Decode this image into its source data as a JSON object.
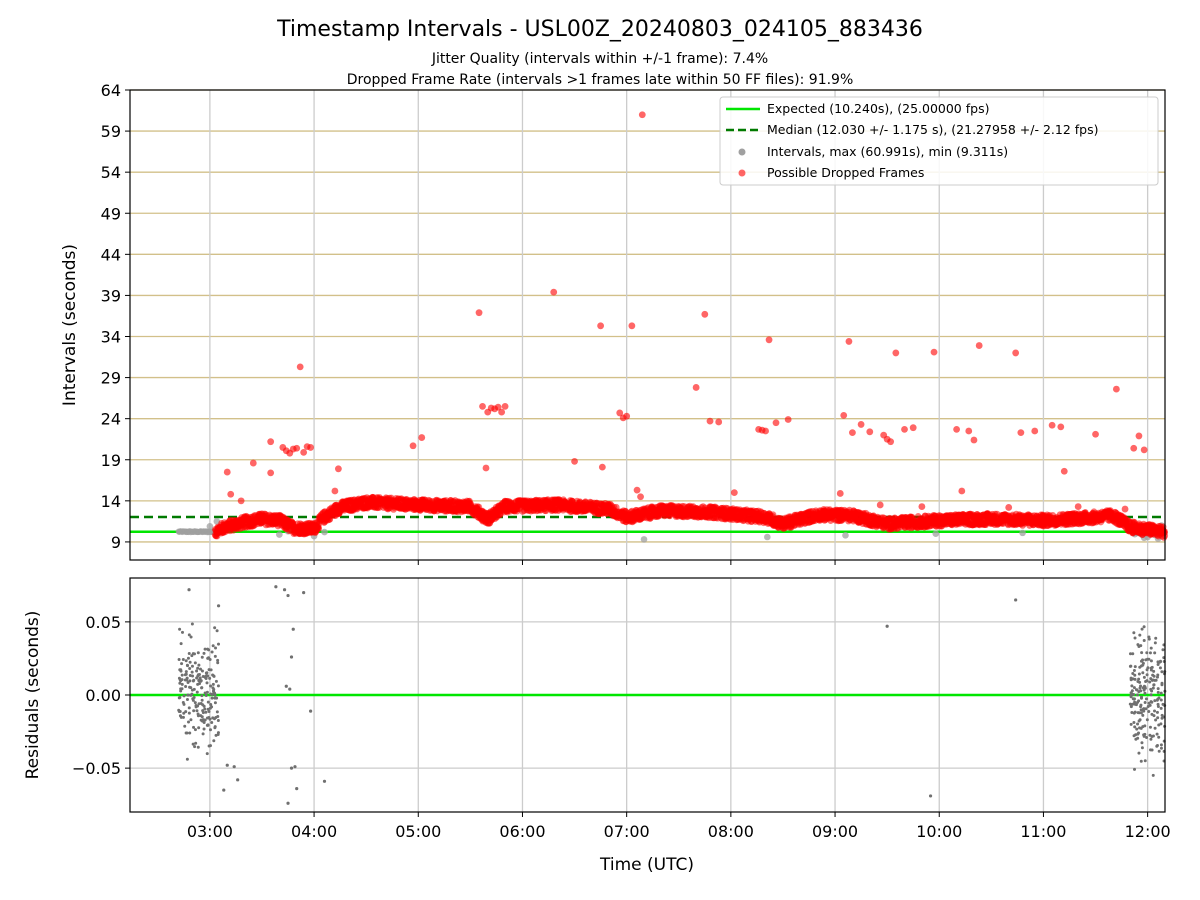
{
  "chart_data": [
    {
      "type": "scatter",
      "title": "Timestamp Intervals - USL00Z_20240803_024105_883436",
      "subtitle_lines": [
        "Jitter Quality (intervals within +/-1 frame): 7.4%",
        "Dropped Frame Rate (intervals >1 frames late within 50 FF files): 91.9%"
      ],
      "ylabel": "Intervals (seconds)",
      "xlim": [
        "02:14",
        "12:10"
      ],
      "ylim": [
        6.8,
        64
      ],
      "yticks": [
        9,
        14,
        19,
        24,
        29,
        34,
        39,
        44,
        49,
        54,
        59,
        64
      ],
      "xticks": [
        "03:00",
        "04:00",
        "05:00",
        "06:00",
        "07:00",
        "08:00",
        "09:00",
        "10:00",
        "11:00",
        "12:00"
      ],
      "grid": "x and y",
      "legend_position": "upper-right",
      "colors": {
        "expected": "#00e600",
        "median": "#007a00",
        "intervals": "#a0a0a0",
        "dropped": "#ff0000",
        "hgrid": "#d2c08a",
        "vgrid": "#cccccc"
      },
      "expected_value": 10.24,
      "median_value": 12.03,
      "series": [
        {
          "name": "Expected (10.240s), (25.00000 fps)",
          "style": "solid-line"
        },
        {
          "name": "Median (12.030 +/- 1.175 s), (21.27958 +/- 2.12 fps)",
          "style": "dashed-line"
        },
        {
          "name": "Intervals, max (60.991s), min (9.311s)",
          "style": "grey-dots"
        },
        {
          "name": "Possible Dropped Frames",
          "style": "red-dots"
        }
      ],
      "baseline_profile": [
        [
          "02:42",
          10.24
        ],
        [
          "03:02",
          10.2
        ],
        [
          "03:10",
          10.9
        ],
        [
          "03:20",
          11.4
        ],
        [
          "03:30",
          11.8
        ],
        [
          "03:40",
          11.6
        ],
        [
          "03:48",
          10.7
        ],
        [
          "04:00",
          10.6
        ],
        [
          "04:05",
          11.9
        ],
        [
          "04:15",
          13.2
        ],
        [
          "04:30",
          13.8
        ],
        [
          "05:00",
          13.5
        ],
        [
          "05:30",
          13.3
        ],
        [
          "05:40",
          11.8
        ],
        [
          "05:50",
          13.3
        ],
        [
          "06:20",
          13.5
        ],
        [
          "06:50",
          13.0
        ],
        [
          "07:00",
          12.0
        ],
        [
          "07:20",
          12.8
        ],
        [
          "07:50",
          12.6
        ],
        [
          "08:20",
          12.0
        ],
        [
          "08:30",
          11.2
        ],
        [
          "08:50",
          12.3
        ],
        [
          "09:10",
          12.2
        ],
        [
          "09:30",
          11.2
        ],
        [
          "10:00",
          11.6
        ],
        [
          "10:30",
          11.8
        ],
        [
          "11:00",
          11.6
        ],
        [
          "11:30",
          12.0
        ],
        [
          "11:40",
          12.2
        ],
        [
          "11:50",
          10.8
        ],
        [
          "12:10",
          10.2
        ]
      ],
      "dropped_outliers": [
        [
          "03:10",
          17.5
        ],
        [
          "03:12",
          14.8
        ],
        [
          "03:18",
          14.0
        ],
        [
          "03:25",
          18.6
        ],
        [
          "03:35",
          17.4
        ],
        [
          "03:35",
          21.2
        ],
        [
          "03:42",
          20.5
        ],
        [
          "03:44",
          20.1
        ],
        [
          "03:46",
          19.8
        ],
        [
          "03:48",
          20.3
        ],
        [
          "03:50",
          20.4
        ],
        [
          "03:52",
          30.3
        ],
        [
          "03:54",
          19.9
        ],
        [
          "03:56",
          20.6
        ],
        [
          "03:58",
          20.5
        ],
        [
          "04:14",
          17.9
        ],
        [
          "04:12",
          15.2
        ],
        [
          "04:57",
          20.7
        ],
        [
          "05:02",
          21.7
        ],
        [
          "05:35",
          36.9
        ],
        [
          "05:37",
          25.5
        ],
        [
          "05:39",
          18.0
        ],
        [
          "05:40",
          24.8
        ],
        [
          "05:42",
          25.3
        ],
        [
          "05:44",
          25.2
        ],
        [
          "05:46",
          25.4
        ],
        [
          "05:48",
          24.8
        ],
        [
          "05:50",
          25.5
        ],
        [
          "06:18",
          39.4
        ],
        [
          "06:30",
          18.8
        ],
        [
          "06:45",
          35.3
        ],
        [
          "06:46",
          18.1
        ],
        [
          "06:56",
          24.7
        ],
        [
          "06:58",
          24.1
        ],
        [
          "07:00",
          24.3
        ],
        [
          "07:03",
          35.3
        ],
        [
          "07:06",
          15.3
        ],
        [
          "07:08",
          14.5
        ],
        [
          "07:09",
          60.99
        ],
        [
          "07:40",
          27.8
        ],
        [
          "07:45",
          36.7
        ],
        [
          "07:48",
          23.7
        ],
        [
          "07:53",
          23.6
        ],
        [
          "08:02",
          15.0
        ],
        [
          "08:16",
          22.7
        ],
        [
          "08:18",
          22.6
        ],
        [
          "08:20",
          22.5
        ],
        [
          "08:22",
          33.6
        ],
        [
          "08:26",
          23.5
        ],
        [
          "08:33",
          23.9
        ],
        [
          "09:03",
          14.9
        ],
        [
          "09:05",
          24.4
        ],
        [
          "09:08",
          33.4
        ],
        [
          "09:10",
          22.3
        ],
        [
          "09:15",
          23.3
        ],
        [
          "09:20",
          22.4
        ],
        [
          "09:26",
          13.5
        ],
        [
          "09:28",
          22.0
        ],
        [
          "09:30",
          21.5
        ],
        [
          "09:32",
          21.2
        ],
        [
          "09:35",
          32.0
        ],
        [
          "09:40",
          22.7
        ],
        [
          "09:45",
          22.9
        ],
        [
          "09:50",
          13.3
        ],
        [
          "09:57",
          32.1
        ],
        [
          "10:10",
          22.7
        ],
        [
          "10:13",
          15.2
        ],
        [
          "10:17",
          22.5
        ],
        [
          "10:20",
          21.4
        ],
        [
          "10:23",
          32.9
        ],
        [
          "10:40",
          13.2
        ],
        [
          "10:44",
          32.0
        ],
        [
          "10:47",
          22.3
        ],
        [
          "10:55",
          22.5
        ],
        [
          "11:05",
          23.2
        ],
        [
          "11:10",
          23.0
        ],
        [
          "11:12",
          17.6
        ],
        [
          "11:20",
          13.3
        ],
        [
          "11:30",
          22.1
        ],
        [
          "11:42",
          27.6
        ],
        [
          "11:47",
          13.0
        ],
        [
          "11:52",
          20.4
        ],
        [
          "11:55",
          21.9
        ],
        [
          "11:58",
          20.2
        ]
      ],
      "interval_samples": [
        [
          "03:00",
          10.9
        ],
        [
          "03:04",
          11.5
        ],
        [
          "03:40",
          9.9
        ],
        [
          "03:45",
          10.3
        ],
        [
          "04:00",
          9.7
        ],
        [
          "04:06",
          10.2
        ],
        [
          "07:10",
          9.31
        ],
        [
          "08:21",
          9.6
        ],
        [
          "09:06",
          9.8
        ],
        [
          "09:58",
          10.0
        ],
        [
          "10:48",
          10.1
        ],
        [
          "11:58",
          9.5
        ],
        [
          "12:00",
          9.6
        ],
        [
          "12:06",
          9.4
        ],
        [
          "12:08",
          11.0
        ]
      ]
    },
    {
      "type": "scatter",
      "title": "",
      "xlabel": "Time (UTC)",
      "ylabel": "Residuals (seconds)",
      "xlim": [
        "02:14",
        "12:10"
      ],
      "ylim": [
        -0.08,
        0.08
      ],
      "yticks": [
        0.05,
        0.0,
        -0.05
      ],
      "ytick_labels": [
        "0.05",
        "0.00",
        "−0.05"
      ],
      "xticks": [
        "03:00",
        "04:00",
        "05:00",
        "06:00",
        "07:00",
        "08:00",
        "09:00",
        "10:00",
        "11:00",
        "12:00"
      ],
      "grid": "x and y",
      "reference_line": 0.0,
      "clusters": [
        {
          "from": "02:42",
          "to": "03:05",
          "spread": 0.035
        },
        {
          "from": "11:50",
          "to": "12:10",
          "spread": 0.04
        }
      ],
      "sparse_points": [
        [
          "02:48",
          0.072
        ],
        [
          "03:05",
          0.061
        ],
        [
          "03:08",
          -0.065
        ],
        [
          "03:10",
          -0.048
        ],
        [
          "03:14",
          -0.049
        ],
        [
          "03:16",
          -0.058
        ],
        [
          "03:38",
          0.074
        ],
        [
          "03:43",
          0.072
        ],
        [
          "03:45",
          0.068
        ],
        [
          "03:44",
          0.006
        ],
        [
          "03:46",
          0.004
        ],
        [
          "03:45",
          -0.074
        ],
        [
          "03:47",
          -0.05
        ],
        [
          "03:49",
          -0.049
        ],
        [
          "03:48",
          0.045
        ],
        [
          "03:47",
          0.026
        ],
        [
          "03:50",
          -0.064
        ],
        [
          "03:54",
          0.07
        ],
        [
          "03:58",
          -0.011
        ],
        [
          "04:06",
          -0.059
        ],
        [
          "09:30",
          0.047
        ],
        [
          "09:55",
          -0.069
        ],
        [
          "10:44",
          0.065
        ]
      ]
    }
  ]
}
